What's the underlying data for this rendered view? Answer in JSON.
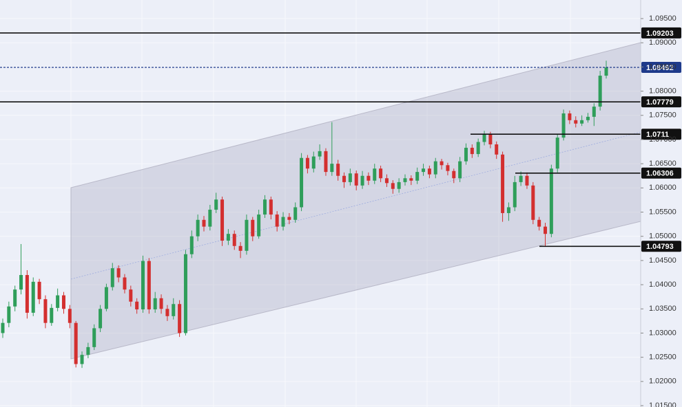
{
  "chart_data": {
    "type": "candlestick",
    "ylim": [
      1.01472,
      1.09884
    ],
    "yticks": [
      {
        "value": 1.095,
        "label": "1.09500"
      },
      {
        "value": 1.09,
        "label": "1.09000"
      },
      {
        "value": 1.085,
        "label": "1.08500"
      },
      {
        "value": 1.08,
        "label": "1.08000"
      },
      {
        "value": 1.075,
        "label": "1.07500"
      },
      {
        "value": 1.07,
        "label": "1.07000"
      },
      {
        "value": 1.065,
        "label": "1.06500"
      },
      {
        "value": 1.06,
        "label": "1.06000"
      },
      {
        "value": 1.055,
        "label": "1.05500"
      },
      {
        "value": 1.05,
        "label": "1.05000"
      },
      {
        "value": 1.045,
        "label": "1.04500"
      },
      {
        "value": 1.04,
        "label": "1.04000"
      },
      {
        "value": 1.035,
        "label": "1.03500"
      },
      {
        "value": 1.03,
        "label": "1.03000"
      },
      {
        "value": 1.025,
        "label": "1.02500"
      },
      {
        "value": 1.02,
        "label": "1.02000"
      },
      {
        "value": 1.015,
        "label": "1.01500"
      }
    ],
    "grid": true,
    "up_color": "#2f9e5a",
    "down_color": "#d32f2f",
    "levels": [
      1.09203,
      1.07779,
      1.0711,
      1.06306,
      1.04793
    ],
    "current_price": 1.08492,
    "current_price_color": "#1e3a8a",
    "candles": [
      [
        1.03,
        1.033,
        1.029,
        1.0321
      ],
      [
        1.0321,
        1.0365,
        1.0312,
        1.0355
      ],
      [
        1.0355,
        1.0398,
        1.0345,
        1.039
      ],
      [
        1.039,
        1.0484,
        1.038,
        1.042
      ],
      [
        1.042,
        1.043,
        1.033,
        1.0342
      ],
      [
        1.0342,
        1.0415,
        1.0335,
        1.0406
      ],
      [
        1.0406,
        1.0412,
        1.036,
        1.037
      ],
      [
        1.037,
        1.0378,
        1.031,
        1.0321
      ],
      [
        1.0321,
        1.036,
        1.0315,
        1.0352
      ],
      [
        1.0352,
        1.0392,
        1.0345,
        1.0378
      ],
      [
        1.0378,
        1.0385,
        1.034,
        1.035
      ],
      [
        1.035,
        1.0358,
        1.031,
        1.0321
      ],
      [
        1.0321,
        1.0325,
        1.0229,
        1.0236
      ],
      [
        1.0236,
        1.0262,
        1.0228,
        1.0255
      ],
      [
        1.0255,
        1.028,
        1.0248,
        1.0271
      ],
      [
        1.0271,
        1.0318,
        1.0265,
        1.031
      ],
      [
        1.031,
        1.0358,
        1.0302,
        1.035
      ],
      [
        1.035,
        1.0402,
        1.0345,
        1.0395
      ],
      [
        1.0395,
        1.0445,
        1.0388,
        1.0434
      ],
      [
        1.0434,
        1.044,
        1.0405,
        1.0415
      ],
      [
        1.0415,
        1.0422,
        1.0382,
        1.039
      ],
      [
        1.039,
        1.0398,
        1.0355,
        1.0365
      ],
      [
        1.0365,
        1.0372,
        1.034,
        1.0349
      ],
      [
        1.0349,
        1.046,
        1.0342,
        1.0449
      ],
      [
        1.0449,
        1.0455,
        1.034,
        1.0349
      ],
      [
        1.0349,
        1.0385,
        1.0342,
        1.0372
      ],
      [
        1.0372,
        1.038,
        1.034,
        1.035
      ],
      [
        1.035,
        1.0358,
        1.0325,
        1.0335
      ],
      [
        1.0335,
        1.0372,
        1.0328,
        1.036
      ],
      [
        1.036,
        1.0368,
        1.0292,
        1.03
      ],
      [
        1.03,
        1.0472,
        1.0295,
        1.0463
      ],
      [
        1.0463,
        1.0512,
        1.0455,
        1.05
      ],
      [
        1.05,
        1.0545,
        1.049,
        1.0534
      ],
      [
        1.0534,
        1.0542,
        1.051,
        1.052
      ],
      [
        1.052,
        1.0565,
        1.0512,
        1.0555
      ],
      [
        1.0555,
        1.059,
        1.0548,
        1.0576
      ],
      [
        1.0576,
        1.0582,
        1.048,
        1.0491
      ],
      [
        1.0491,
        1.0515,
        1.0482,
        1.0505
      ],
      [
        1.0505,
        1.0512,
        1.0472,
        1.048
      ],
      [
        1.048,
        1.0488,
        1.0455,
        1.047
      ],
      [
        1.047,
        1.0545,
        1.0462,
        1.0534
      ],
      [
        1.0534,
        1.054,
        1.049,
        1.05
      ],
      [
        1.05,
        1.0555,
        1.0495,
        1.0545
      ],
      [
        1.0545,
        1.0585,
        1.0538,
        1.0576
      ],
      [
        1.0576,
        1.0582,
        1.0535,
        1.0545
      ],
      [
        1.0545,
        1.0552,
        1.051,
        1.052
      ],
      [
        1.052,
        1.055,
        1.0512,
        1.054
      ],
      [
        1.054,
        1.0548,
        1.0525,
        1.0534
      ],
      [
        1.0534,
        1.057,
        1.0528,
        1.056
      ],
      [
        1.056,
        1.0672,
        1.0552,
        1.0662
      ],
      [
        1.0662,
        1.0668,
        1.063,
        1.064
      ],
      [
        1.064,
        1.0675,
        1.0632,
        1.0665
      ],
      [
        1.0665,
        1.069,
        1.0658,
        1.0676
      ],
      [
        1.0676,
        1.0682,
        1.0625,
        1.0633
      ],
      [
        1.0633,
        1.0736,
        1.0625,
        1.065
      ],
      [
        1.065,
        1.0658,
        1.0615,
        1.0625
      ],
      [
        1.0625,
        1.0632,
        1.06,
        1.0612
      ],
      [
        1.0612,
        1.064,
        1.0605,
        1.063
      ],
      [
        1.063,
        1.0636,
        1.0595,
        1.0605
      ],
      [
        1.0605,
        1.0635,
        1.0598,
        1.0625
      ],
      [
        1.0625,
        1.0632,
        1.0606,
        1.0615
      ],
      [
        1.0615,
        1.065,
        1.0608,
        1.064
      ],
      [
        1.064,
        1.0646,
        1.0612,
        1.062
      ],
      [
        1.062,
        1.0628,
        1.0602,
        1.061
      ],
      [
        1.061,
        1.0616,
        1.0588,
        1.0598
      ],
      [
        1.0598,
        1.062,
        1.059,
        1.0612
      ],
      [
        1.0612,
        1.0628,
        1.0605,
        1.062
      ],
      [
        1.062,
        1.0626,
        1.0606,
        1.0615
      ],
      [
        1.0615,
        1.0642,
        1.0608,
        1.0633
      ],
      [
        1.0633,
        1.065,
        1.0625,
        1.064
      ],
      [
        1.064,
        1.0646,
        1.062,
        1.0628
      ],
      [
        1.0628,
        1.0662,
        1.062,
        1.0655
      ],
      [
        1.0655,
        1.066,
        1.0638,
        1.0647
      ],
      [
        1.0647,
        1.0652,
        1.0626,
        1.0635
      ],
      [
        1.0635,
        1.064,
        1.061,
        1.062
      ],
      [
        1.062,
        1.0664,
        1.0612,
        1.0655
      ],
      [
        1.0655,
        1.0692,
        1.0648,
        1.0683
      ],
      [
        1.0683,
        1.069,
        1.0662,
        1.067
      ],
      [
        1.067,
        1.0702,
        1.0664,
        1.0695
      ],
      [
        1.0695,
        1.0718,
        1.0688,
        1.0711
      ],
      [
        1.0711,
        1.0716,
        1.0682,
        1.069
      ],
      [
        1.069,
        1.0696,
        1.066,
        1.0669
      ],
      [
        1.0669,
        1.0675,
        1.053,
        1.0548
      ],
      [
        1.0548,
        1.057,
        1.0532,
        1.056
      ],
      [
        1.056,
        1.0625,
        1.0552,
        1.0612
      ],
      [
        1.0612,
        1.0634,
        1.0604,
        1.0625
      ],
      [
        1.0625,
        1.0632,
        1.0598,
        1.0605
      ],
      [
        1.0605,
        1.0612,
        1.0525,
        1.0534
      ],
      [
        1.0534,
        1.054,
        1.0512,
        1.052
      ],
      [
        1.052,
        1.0528,
        1.048,
        1.0505
      ],
      [
        1.0505,
        1.0648,
        1.0498,
        1.064
      ],
      [
        1.064,
        1.0712,
        1.0632,
        1.0704
      ],
      [
        1.0704,
        1.0762,
        1.0698,
        1.0754
      ],
      [
        1.0754,
        1.076,
        1.0732,
        1.074
      ],
      [
        1.074,
        1.0748,
        1.0725,
        1.0733
      ],
      [
        1.0733,
        1.075,
        1.0728,
        1.074
      ],
      [
        1.074,
        1.0755,
        1.0735,
        1.0747
      ],
      [
        1.0747,
        1.0775,
        1.0728,
        1.0768
      ],
      [
        1.0768,
        1.0842,
        1.076,
        1.0832
      ],
      [
        1.0832,
        1.0863,
        1.0826,
        1.0849
      ]
    ]
  }
}
